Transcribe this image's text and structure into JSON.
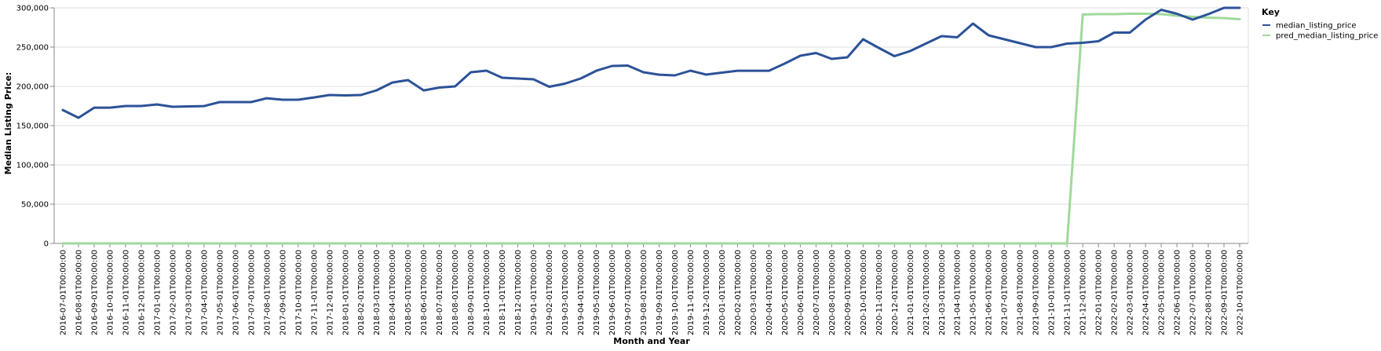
{
  "chart_data": {
    "type": "line",
    "xlabel": "Month and Year",
    "ylabel": "Median Listing Price:",
    "ylim": [
      0,
      300000
    ],
    "yticks": [
      0,
      50000,
      100000,
      150000,
      200000,
      250000,
      300000
    ],
    "ytick_labels": [
      "0",
      "50,000",
      "100,000",
      "150,000",
      "200,000",
      "250,000",
      "300,000"
    ],
    "grid": true,
    "legend": {
      "title": "Key",
      "position": "top-right"
    },
    "x": [
      "2016-07-01T00:00:00",
      "2016-08-01T00:00:00",
      "2016-09-01T00:00:00",
      "2016-10-01T00:00:00",
      "2016-11-01T00:00:00",
      "2016-12-01T00:00:00",
      "2017-01-01T00:00:00",
      "2017-02-01T00:00:00",
      "2017-03-01T00:00:00",
      "2017-04-01T00:00:00",
      "2017-05-01T00:00:00",
      "2017-06-01T00:00:00",
      "2017-07-01T00:00:00",
      "2017-08-01T00:00:00",
      "2017-09-01T00:00:00",
      "2017-10-01T00:00:00",
      "2017-11-01T00:00:00",
      "2017-12-01T00:00:00",
      "2018-01-01T00:00:00",
      "2018-02-01T00:00:00",
      "2018-03-01T00:00:00",
      "2018-04-01T00:00:00",
      "2018-05-01T00:00:00",
      "2018-06-01T00:00:00",
      "2018-07-01T00:00:00",
      "2018-08-01T00:00:00",
      "2018-09-01T00:00:00",
      "2018-10-01T00:00:00",
      "2018-11-01T00:00:00",
      "2018-12-01T00:00:00",
      "2019-01-01T00:00:00",
      "2019-02-01T00:00:00",
      "2019-03-01T00:00:00",
      "2019-04-01T00:00:00",
      "2019-05-01T00:00:00",
      "2019-06-01T00:00:00",
      "2019-07-01T00:00:00",
      "2019-08-01T00:00:00",
      "2019-09-01T00:00:00",
      "2019-10-01T00:00:00",
      "2019-11-01T00:00:00",
      "2019-12-01T00:00:00",
      "2020-01-01T00:00:00",
      "2020-02-01T00:00:00",
      "2020-03-01T00:00:00",
      "2020-04-01T00:00:00",
      "2020-05-01T00:00:00",
      "2020-06-01T00:00:00",
      "2020-07-01T00:00:00",
      "2020-08-01T00:00:00",
      "2020-09-01T00:00:00",
      "2020-10-01T00:00:00",
      "2020-11-01T00:00:00",
      "2020-12-01T00:00:00",
      "2021-01-01T00:00:00",
      "2021-02-01T00:00:00",
      "2021-03-01T00:00:00",
      "2021-04-01T00:00:00",
      "2021-05-01T00:00:00",
      "2021-06-01T00:00:00",
      "2021-07-01T00:00:00",
      "2021-08-01T00:00:00",
      "2021-09-01T00:00:00",
      "2021-10-01T00:00:00",
      "2021-11-01T00:00:00",
      "2021-12-01T00:00:00",
      "2022-01-01T00:00:00",
      "2022-02-01T00:00:00",
      "2022-03-01T00:00:00",
      "2022-04-01T00:00:00",
      "2022-05-01T00:00:00",
      "2022-06-01T00:00:00",
      "2022-07-01T00:00:00",
      "2022-08-01T00:00:00",
      "2022-09-01T00:00:00",
      "2022-10-01T00:00:00"
    ],
    "series": [
      {
        "name": "median_listing_price",
        "color": "#2c5298",
        "values": [
          169900,
          160000,
          172900,
          172900,
          175000,
          175000,
          177000,
          174000,
          174500,
          174900,
          180000,
          180000,
          180000,
          184900,
          183000,
          183000,
          185900,
          189000,
          188500,
          189000,
          195000,
          204900,
          208000,
          194900,
          198500,
          200000,
          218000,
          220000,
          211000,
          210000,
          209000,
          199500,
          203500,
          210000,
          219900,
          226000,
          226500,
          218000,
          214900,
          214000,
          220000,
          215000,
          217500,
          219900,
          219900,
          219900,
          229000,
          239000,
          242500,
          235000,
          237000,
          260000,
          249000,
          238500,
          245000,
          254500,
          264000,
          262500,
          280000,
          265000,
          260000,
          255000,
          250000,
          250000,
          254500,
          255500,
          257500,
          268500,
          268500,
          285000,
          297500,
          292500,
          285000,
          292000,
          300000,
          300000
        ]
      },
      {
        "name": "pred_median_listing_price",
        "color": "#a0d99b",
        "values": [
          0,
          0,
          0,
          0,
          0,
          0,
          0,
          0,
          0,
          0,
          0,
          0,
          0,
          0,
          0,
          0,
          0,
          0,
          0,
          0,
          0,
          0,
          0,
          0,
          0,
          0,
          0,
          0,
          0,
          0,
          0,
          0,
          0,
          0,
          0,
          0,
          0,
          0,
          0,
          0,
          0,
          0,
          0,
          0,
          0,
          0,
          0,
          0,
          0,
          0,
          0,
          0,
          0,
          0,
          0,
          0,
          0,
          0,
          0,
          0,
          0,
          0,
          0,
          0,
          0,
          291500,
          292000,
          292000,
          292500,
          292500,
          292000,
          290000,
          288500,
          287500,
          287000,
          285500
        ]
      }
    ]
  }
}
